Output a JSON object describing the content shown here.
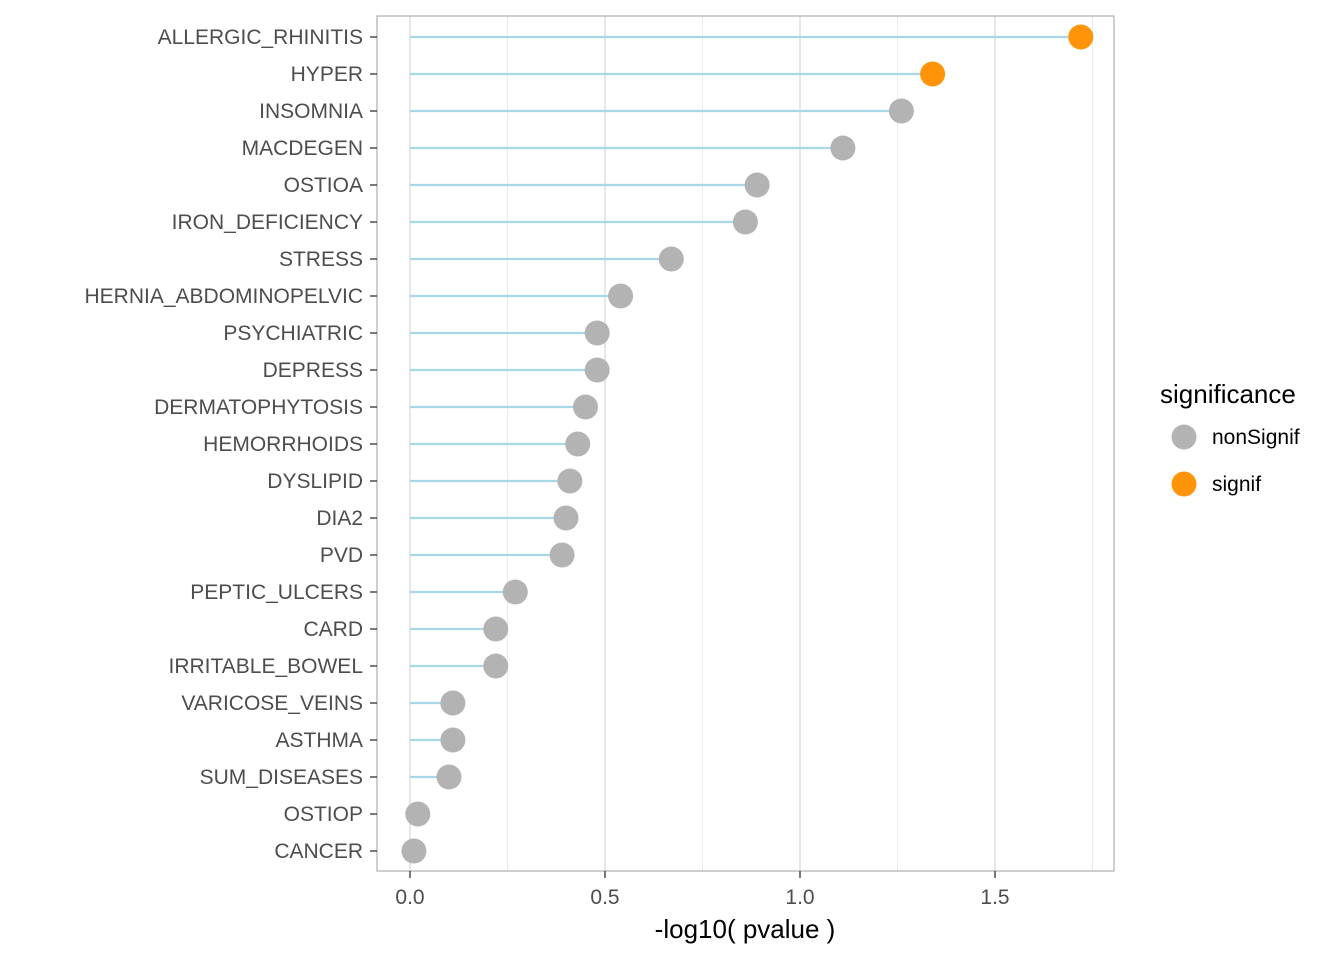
{
  "chart_data": {
    "type": "lollipop",
    "xlabel": "-log10( pvalue )",
    "xlim": [
      -0.08,
      1.8
    ],
    "x_ticks": [
      0.0,
      0.5,
      1.0,
      1.5
    ],
    "x_tick_labels": [
      "0.0",
      "0.5",
      "1.0",
      "1.5"
    ],
    "grid": true,
    "legend": {
      "title": "significance",
      "placement": "right",
      "entries": [
        {
          "label": "nonSignif",
          "color": "#b3b3b3"
        },
        {
          "label": "signif",
          "color": "#ff9408"
        }
      ]
    },
    "colors": {
      "stem": "#a6d8ea",
      "nonSignif": "#b3b3b3",
      "signif": "#ff9408",
      "panel_border": "#b3b3b3",
      "grid_major": "#dadada",
      "grid_minor": "#ececec"
    },
    "categories": [
      "ALLERGIC_RHINITIS",
      "HYPER",
      "INSOMNIA",
      "MACDEGEN",
      "OSTIOA",
      "IRON_DEFICIENCY",
      "STRESS",
      "HERNIA_ABDOMINOPELVIC",
      "PSYCHIATRIC",
      "DEPRESS",
      "DERMATOPHYTOSIS",
      "HEMORRHOIDS",
      "DYSLIPID",
      "DIA2",
      "PVD",
      "PEPTIC_ULCERS",
      "CARD",
      "IRRITABLE_BOWEL",
      "VARICOSE_VEINS",
      "ASTHMA",
      "SUM_DISEASES",
      "OSTIOP",
      "CANCER"
    ],
    "values": [
      1.72,
      1.34,
      1.26,
      1.11,
      0.89,
      0.86,
      0.67,
      0.54,
      0.48,
      0.48,
      0.45,
      0.43,
      0.41,
      0.4,
      0.39,
      0.27,
      0.22,
      0.22,
      0.11,
      0.11,
      0.1,
      0.02,
      0.01
    ],
    "significance": [
      "signif",
      "signif",
      "nonSignif",
      "nonSignif",
      "nonSignif",
      "nonSignif",
      "nonSignif",
      "nonSignif",
      "nonSignif",
      "nonSignif",
      "nonSignif",
      "nonSignif",
      "nonSignif",
      "nonSignif",
      "nonSignif",
      "nonSignif",
      "nonSignif",
      "nonSignif",
      "nonSignif",
      "nonSignif",
      "nonSignif",
      "nonSignif",
      "nonSignif"
    ]
  }
}
